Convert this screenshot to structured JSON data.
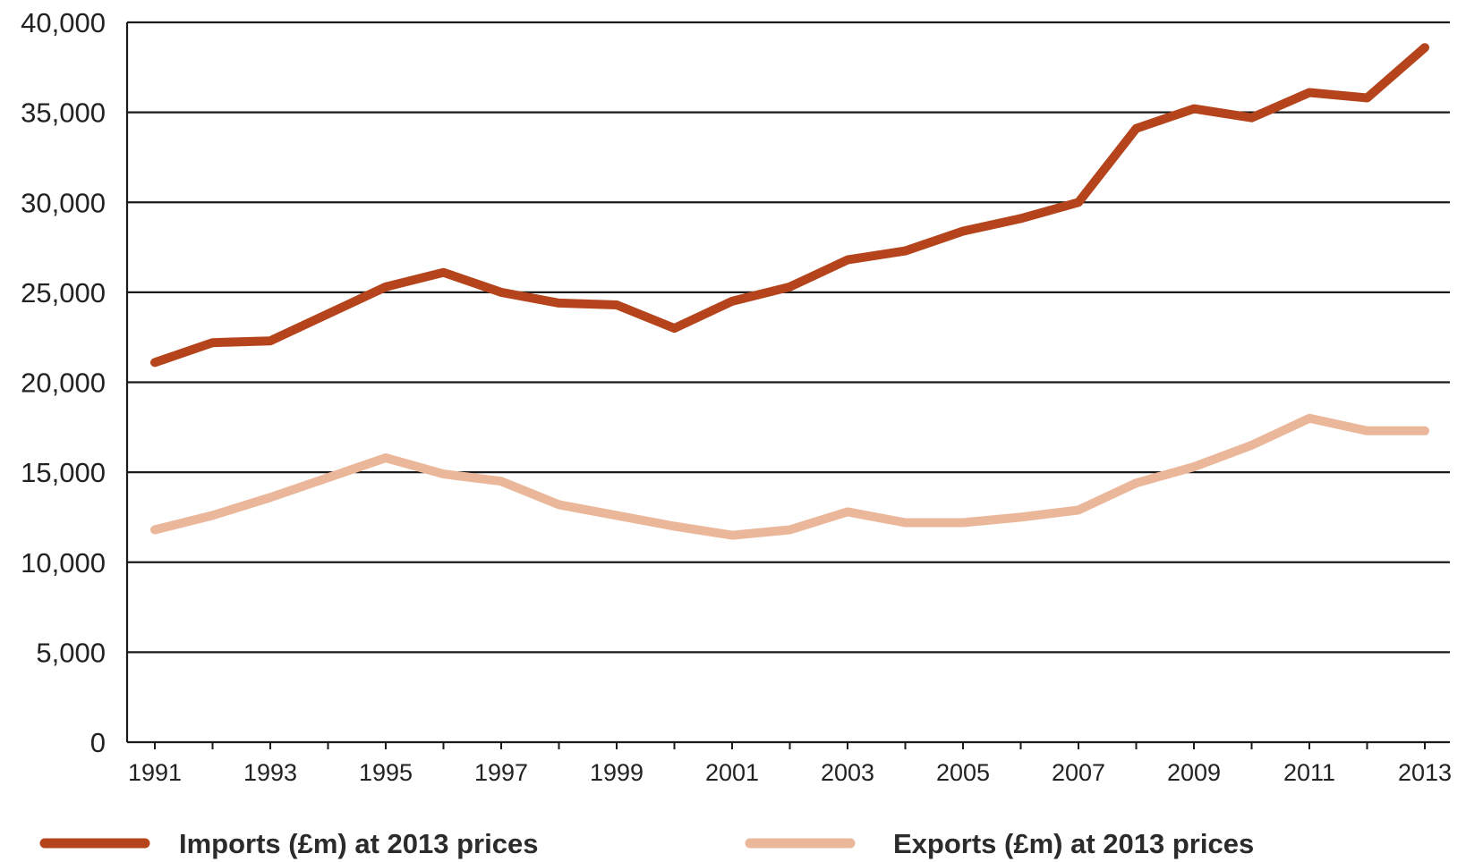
{
  "chart_data": {
    "type": "line",
    "title": "",
    "xlabel": "",
    "ylabel": "",
    "ylim": [
      0,
      40000
    ],
    "yticks": [
      "0",
      "5,000",
      "10,000",
      "15,000",
      "20,000",
      "25,000",
      "30,000",
      "35,000",
      "40,000"
    ],
    "zero_tick_color": "#2e8b57",
    "x": [
      1991,
      1992,
      1993,
      1994,
      1995,
      1996,
      1997,
      1998,
      1999,
      2000,
      2001,
      2002,
      2003,
      2004,
      2005,
      2006,
      2007,
      2008,
      2009,
      2010,
      2011,
      2012,
      2013
    ],
    "xtick_labels": [
      "1991",
      "1993",
      "1995",
      "1997",
      "1999",
      "2001",
      "2003",
      "2005",
      "2007",
      "2009",
      "2011",
      "2013"
    ],
    "grid": true,
    "legend_position": "bottom",
    "series": [
      {
        "name": "Imports (£m) at 2013 prices",
        "color": "#b5441c",
        "values": [
          21100,
          22200,
          22300,
          23800,
          25300,
          26100,
          25000,
          24400,
          24300,
          23000,
          24500,
          25300,
          26800,
          27300,
          28400,
          29100,
          30000,
          34100,
          35200,
          34700,
          36100,
          35800,
          38600
        ]
      },
      {
        "name": "Exports (£m) at 2013 prices",
        "color": "#ebb79a",
        "values": [
          11800,
          12600,
          13600,
          14700,
          15800,
          14900,
          14500,
          13200,
          12600,
          12000,
          11500,
          11800,
          12800,
          12200,
          12200,
          12500,
          12900,
          14400,
          15300,
          16500,
          18000,
          17300,
          17300
        ]
      }
    ]
  }
}
